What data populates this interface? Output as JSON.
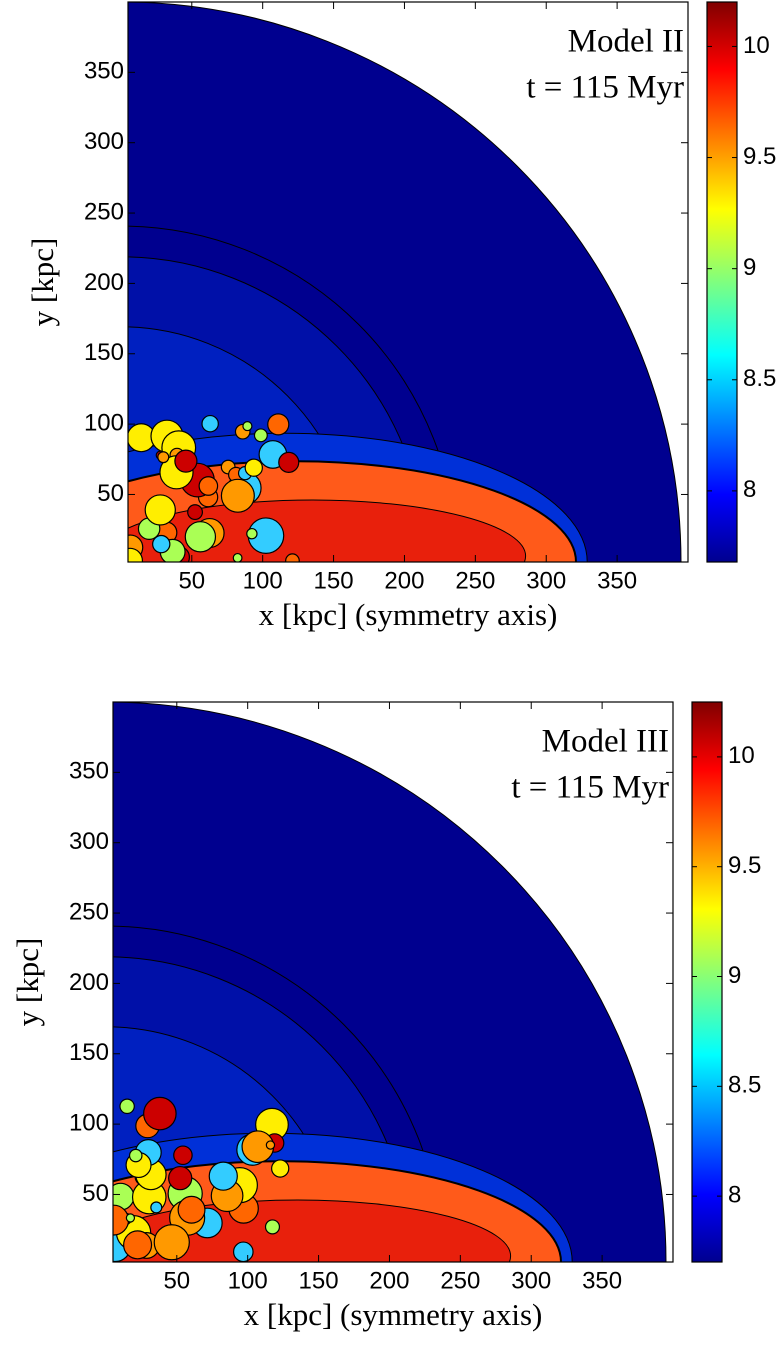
{
  "chart_data": [
    {
      "type": "contour",
      "annotations": [
        "Model II",
        "t = 115 Myr"
      ],
      "xlabel": "x [kpc] (symmetry axis)",
      "ylabel": "y [kpc]",
      "xlim": [
        5,
        400
      ],
      "xticks": [
        50,
        100,
        150,
        200,
        250,
        300,
        350
      ],
      "ylim": [
        2,
        400
      ],
      "yticks": [
        50,
        100,
        150,
        200,
        250,
        300,
        350
      ],
      "colorbar": {
        "clim": [
          7.68,
          10.2
        ],
        "ticks": [
          8,
          8.5,
          9,
          9.5,
          10
        ]
      }
    },
    {
      "type": "contour",
      "annotations": [
        "Model III",
        "t = 115 Myr"
      ],
      "xlabel": "x [kpc] (symmetry axis)",
      "ylabel": "y [kpc]",
      "xlim": [
        5,
        400
      ],
      "xticks": [
        50,
        100,
        150,
        200,
        250,
        300,
        350
      ],
      "ylim": [
        2,
        400
      ],
      "yticks": [
        50,
        100,
        150,
        200,
        250,
        300,
        350
      ],
      "colorbar": {
        "clim": [
          7.7,
          10.25
        ],
        "ticks": [
          8,
          8.5,
          9,
          9.5,
          10
        ]
      }
    }
  ]
}
